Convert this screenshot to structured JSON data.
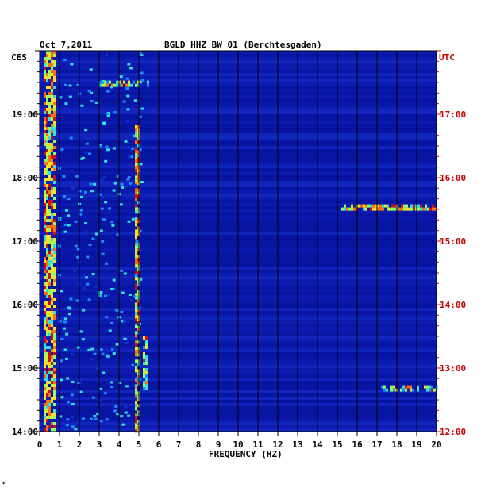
{
  "chart_data": {
    "type": "heatmap",
    "date": "Oct 7,2011",
    "title": "BGLD HHZ BW 01 (Berchtesgaden)",
    "xlabel": "FREQUENCY (HZ)",
    "left_axis_label": "CES",
    "right_axis_label": "UTC",
    "xlim": [
      0,
      20
    ],
    "x_ticks": [
      "0",
      "1",
      "2",
      "3",
      "4",
      "5",
      "6",
      "7",
      "8",
      "9",
      "10",
      "11",
      "12",
      "13",
      "14",
      "15",
      "16",
      "17",
      "18",
      "19",
      "20"
    ],
    "left_ticks": [
      "19:00",
      "18:00",
      "17:00",
      "16:00",
      "15:00",
      "14:00"
    ],
    "right_ticks": [
      "17:00",
      "16:00",
      "15:00",
      "14:00",
      "13:00",
      "12:00"
    ],
    "time_range_ces": [
      "14:00",
      "19:50"
    ],
    "background_color": "#0a1aa8",
    "left_label_color": "#000000",
    "right_label_color": "#cc0000",
    "grid": true,
    "hotspots": [
      {
        "freq": [
          0.2,
          0.8
        ],
        "time": "full",
        "level": "high"
      },
      {
        "freq": [
          4.8,
          5.0
        ],
        "time": "14:00-18:50",
        "level": "high"
      },
      {
        "freq": [
          5.2,
          5.4
        ],
        "time": "14:40-15:30",
        "level": "medium"
      },
      {
        "freq": [
          3.0,
          5.6
        ],
        "time": "19:30",
        "level": "medium"
      },
      {
        "freq": [
          15.2,
          20.0
        ],
        "time": "17:33",
        "level": "high"
      },
      {
        "freq": [
          17.2,
          20.0
        ],
        "time": "14:42",
        "level": "medium"
      }
    ]
  },
  "footer_mark": "*"
}
